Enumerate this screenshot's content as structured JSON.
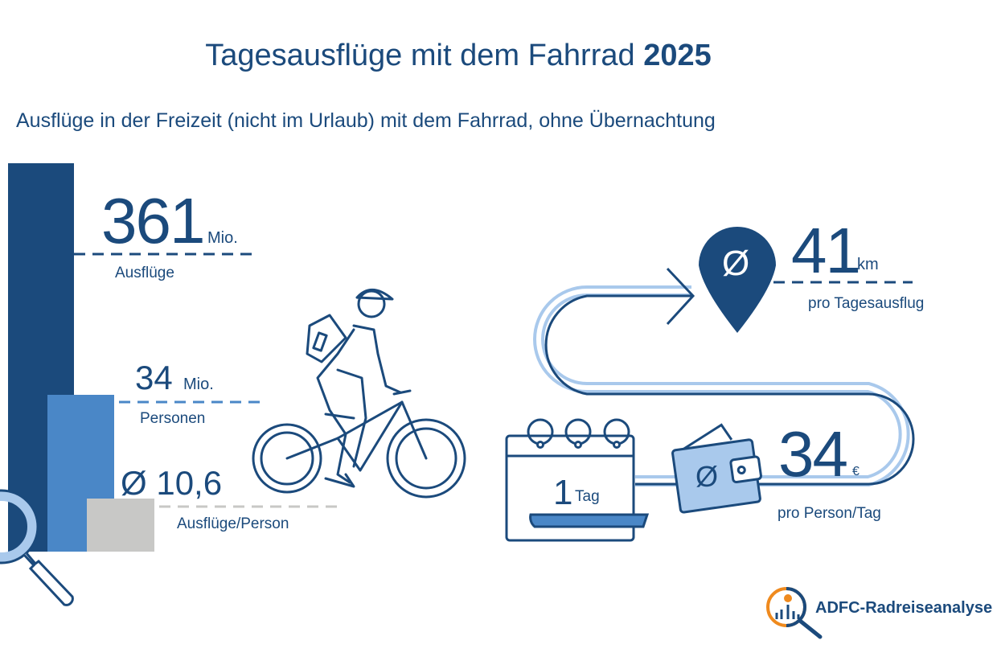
{
  "title": {
    "text": "Tagesausflüge mit dem Fahrrad",
    "year": "2025"
  },
  "subtitle": "Ausflüge in der Freizeit (nicht im Urlaub) mit dem Fahrrad, ohne Übernachtung",
  "stats": {
    "trips": {
      "value": "361",
      "unit": "Mio.",
      "label": "Ausflüge"
    },
    "persons": {
      "value": "34",
      "unit": "Mio.",
      "label": "Personen"
    },
    "per_person": {
      "value": "Ø 10,6",
      "label": "Ausflüge/Person"
    },
    "distance": {
      "symbol": "Ø",
      "value": "41",
      "unit": "km",
      "label": "pro Tagesausflug"
    },
    "duration": {
      "value": "1",
      "unit": "Tag"
    },
    "spending": {
      "symbol": "Ø",
      "value": "34",
      "unit": "€",
      "label": "pro Person/Tag"
    }
  },
  "logo": {
    "text": "ADFC-Radreiseanalyse"
  },
  "colors": {
    "dark": "#1b4a7c",
    "mid": "#4a87c7",
    "light": "#a9c9ec",
    "gray": "#c8c8c6",
    "orange": "#ef8a1e"
  },
  "icons": [
    "magnifier-icon",
    "cyclist-icon",
    "route-icon",
    "map-pin-icon",
    "calendar-icon",
    "wallet-icon",
    "logo-icon"
  ]
}
